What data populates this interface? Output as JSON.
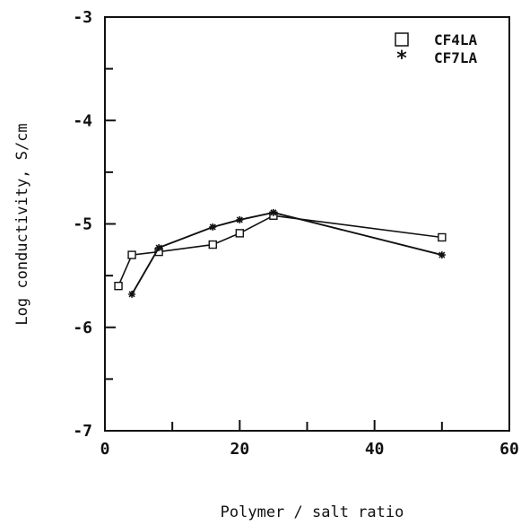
{
  "chart_data": {
    "type": "line",
    "title": "",
    "xlabel": "Polymer / salt ratio",
    "ylabel": "Log conductivity, S/cm",
    "xlim": [
      0,
      60
    ],
    "ylim": [
      -7,
      -3
    ],
    "x_ticks": [
      0,
      20,
      40,
      60
    ],
    "y_ticks": [
      -3,
      -4,
      -5,
      -6,
      -7
    ],
    "grid": false,
    "legend_position": "top-right",
    "series": [
      {
        "name": "CF4LA",
        "marker": "square",
        "points": [
          [
            2,
            -5.6
          ],
          [
            4,
            -5.3
          ],
          [
            8,
            -5.27
          ],
          [
            16,
            -5.2
          ],
          [
            20,
            -5.09
          ],
          [
            25,
            -4.92
          ],
          [
            50,
            -5.13
          ]
        ]
      },
      {
        "name": "CF7LA",
        "marker": "star",
        "points": [
          [
            4,
            -5.68
          ],
          [
            8,
            -5.23
          ],
          [
            16,
            -5.03
          ],
          [
            20,
            -4.96
          ],
          [
            25,
            -4.89
          ],
          [
            50,
            -5.3
          ]
        ]
      }
    ]
  }
}
